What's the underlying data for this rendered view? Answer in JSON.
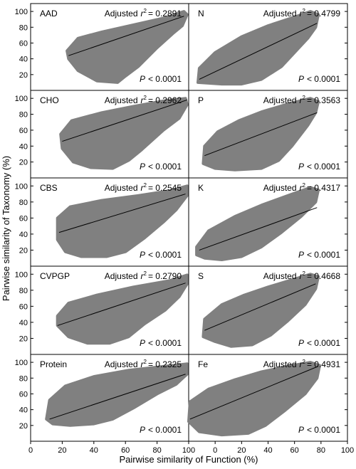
{
  "figure": {
    "ylabel": "Pairwise  similarity of Taxonomy (%)",
    "xlabel": "Pairwise similarity of Function (%)",
    "left_xticks": [
      "0",
      "20",
      "40",
      "60",
      "80",
      "100"
    ],
    "right_xticks": [
      "0",
      "20",
      "40",
      "60",
      "80",
      "100"
    ],
    "yticks": [
      "20",
      "40",
      "60",
      "80",
      "100"
    ],
    "scatter_color": "#808080",
    "line_color": "#000000"
  },
  "chart_data": [
    {
      "type": "scatter",
      "panel": "AAD",
      "r2_label": "Adjusted",
      "r2_symbol": "r",
      "r2_value": "= 0.2891",
      "p_label": "P",
      "p_value": "< 0.0001",
      "xlim": [
        0,
        100
      ],
      "ylim": [
        0,
        110
      ],
      "cloud": [
        [
          24,
          40
        ],
        [
          23,
          50
        ],
        [
          30,
          66
        ],
        [
          45,
          74
        ],
        [
          65,
          83
        ],
        [
          85,
          92
        ],
        [
          97,
          100
        ],
        [
          99,
          96
        ],
        [
          96,
          82
        ],
        [
          90,
          72
        ],
        [
          80,
          54
        ],
        [
          68,
          30
        ],
        [
          60,
          18
        ],
        [
          55,
          10
        ],
        [
          42,
          12
        ],
        [
          30,
          25
        ]
      ],
      "regression": [
        [
          24,
          44
        ],
        [
          97,
          94
        ]
      ]
    },
    {
      "type": "scatter",
      "panel": "N",
      "r2_label": "Adjusted",
      "r2_symbol": "r",
      "r2_value": "= 0.4799",
      "p_label": "P",
      "p_value": "< 0.0001",
      "xlim": [
        -20,
        100
      ],
      "ylim": [
        0,
        110
      ],
      "cloud": [
        [
          -13,
          10
        ],
        [
          -12,
          28
        ],
        [
          0,
          48
        ],
        [
          20,
          68
        ],
        [
          40,
          82
        ],
        [
          60,
          93
        ],
        [
          72,
          100
        ],
        [
          78,
          96
        ],
        [
          76,
          80
        ],
        [
          70,
          66
        ],
        [
          60,
          48
        ],
        [
          50,
          30
        ],
        [
          35,
          14
        ],
        [
          20,
          8
        ],
        [
          5,
          8
        ]
      ],
      "regression": [
        [
          -12,
          14
        ],
        [
          77,
          85
        ]
      ]
    },
    {
      "type": "scatter",
      "panel": "CHO",
      "r2_label": "Adjusted",
      "r2_symbol": "r",
      "r2_value": "= 0.2962",
      "p_label": "P",
      "p_value": "< 0.0001",
      "xlim": [
        0,
        100
      ],
      "ylim": [
        0,
        110
      ],
      "cloud": [
        [
          20,
          37
        ],
        [
          19,
          55
        ],
        [
          26,
          72
        ],
        [
          45,
          82
        ],
        [
          65,
          90
        ],
        [
          85,
          97
        ],
        [
          98,
          100
        ],
        [
          99,
          92
        ],
        [
          94,
          75
        ],
        [
          84,
          60
        ],
        [
          70,
          35
        ],
        [
          62,
          22
        ],
        [
          52,
          12
        ],
        [
          38,
          13
        ],
        [
          27,
          20
        ]
      ],
      "regression": [
        [
          20,
          46
        ],
        [
          99,
          98
        ]
      ]
    },
    {
      "type": "scatter",
      "panel": "P",
      "r2_label": "Adjusted",
      "r2_symbol": "r",
      "r2_value": "= 0.3563",
      "p_label": "P",
      "p_value": "< 0.0001",
      "xlim": [
        -20,
        100
      ],
      "ylim": [
        0,
        110
      ],
      "cloud": [
        [
          -9,
          18
        ],
        [
          -8,
          40
        ],
        [
          2,
          58
        ],
        [
          18,
          72
        ],
        [
          35,
          83
        ],
        [
          55,
          93
        ],
        [
          72,
          100
        ],
        [
          78,
          96
        ],
        [
          76,
          82
        ],
        [
          70,
          66
        ],
        [
          58,
          40
        ],
        [
          48,
          22
        ],
        [
          35,
          12
        ],
        [
          15,
          10
        ],
        [
          0,
          12
        ]
      ],
      "regression": [
        [
          -8,
          28
        ],
        [
          77,
          82
        ]
      ]
    },
    {
      "type": "scatter",
      "panel": "CBS",
      "r2_label": "Adjusted",
      "r2_symbol": "r",
      "r2_value": "= 0.2545",
      "p_label": "P",
      "p_value": "< 0.0001",
      "xlim": [
        0,
        100
      ],
      "ylim": [
        0,
        110
      ],
      "cloud": [
        [
          17,
          33
        ],
        [
          17,
          60
        ],
        [
          25,
          74
        ],
        [
          45,
          82
        ],
        [
          68,
          88
        ],
        [
          88,
          94
        ],
        [
          99,
          100
        ],
        [
          99,
          88
        ],
        [
          92,
          70
        ],
        [
          84,
          55
        ],
        [
          72,
          35
        ],
        [
          60,
          18
        ],
        [
          48,
          12
        ],
        [
          32,
          12
        ],
        [
          22,
          18
        ]
      ],
      "regression": [
        [
          18,
          42
        ],
        [
          98,
          90
        ]
      ]
    },
    {
      "type": "scatter",
      "panel": "K",
      "r2_label": "Adjusted",
      "r2_symbol": "r",
      "r2_value": "= 0.4317",
      "p_label": "P",
      "p_value": "< 0.0001",
      "xlim": [
        -20,
        100
      ],
      "ylim": [
        0,
        110
      ],
      "cloud": [
        [
          -14,
          14
        ],
        [
          -14,
          24
        ],
        [
          -5,
          44
        ],
        [
          15,
          62
        ],
        [
          35,
          76
        ],
        [
          55,
          88
        ],
        [
          72,
          98
        ],
        [
          78,
          95
        ],
        [
          76,
          80
        ],
        [
          65,
          62
        ],
        [
          50,
          42
        ],
        [
          35,
          24
        ],
        [
          20,
          12
        ],
        [
          5,
          8
        ],
        [
          -8,
          10
        ]
      ],
      "regression": [
        [
          -12,
          20
        ],
        [
          77,
          73
        ]
      ]
    },
    {
      "type": "scatter",
      "panel": "CVPGP",
      "r2_label": "Adjusted",
      "r2_symbol": "r",
      "r2_value": "= 0.2790",
      "p_label": "P",
      "p_value": "< 0.0001",
      "xlim": [
        0,
        100
      ],
      "ylim": [
        0,
        110
      ],
      "cloud": [
        [
          17,
          36
        ],
        [
          17,
          48
        ],
        [
          24,
          64
        ],
        [
          42,
          74
        ],
        [
          65,
          84
        ],
        [
          88,
          92
        ],
        [
          99,
          99
        ],
        [
          99,
          88
        ],
        [
          94,
          72
        ],
        [
          85,
          55
        ],
        [
          72,
          38
        ],
        [
          62,
          22
        ],
        [
          50,
          14
        ],
        [
          36,
          14
        ],
        [
          24,
          22
        ]
      ],
      "regression": [
        [
          17,
          36
        ],
        [
          98,
          89
        ]
      ]
    },
    {
      "type": "scatter",
      "panel": "S",
      "r2_label": "Adjusted",
      "r2_symbol": "r",
      "r2_value": "= 0.4668",
      "p_label": "P",
      "p_value": "< 0.0001",
      "xlim": [
        -20,
        100
      ],
      "ylim": [
        0,
        110
      ],
      "cloud": [
        [
          -9,
          22
        ],
        [
          -8,
          44
        ],
        [
          5,
          62
        ],
        [
          22,
          74
        ],
        [
          40,
          84
        ],
        [
          58,
          93
        ],
        [
          72,
          100
        ],
        [
          78,
          97
        ],
        [
          76,
          82
        ],
        [
          68,
          62
        ],
        [
          55,
          42
        ],
        [
          42,
          24
        ],
        [
          28,
          12
        ],
        [
          12,
          10
        ],
        [
          0,
          16
        ]
      ],
      "regression": [
        [
          -8,
          30
        ],
        [
          76,
          88
        ]
      ]
    },
    {
      "type": "scatter",
      "panel": "Protein",
      "r2_label": "Adjusted",
      "r2_symbol": "r",
      "r2_value": "= 0.2325",
      "p_label": "P",
      "p_value": "< 0.0001",
      "xlim": [
        0,
        100
      ],
      "ylim": [
        0,
        110
      ],
      "cloud": [
        [
          10,
          28
        ],
        [
          12,
          52
        ],
        [
          22,
          70
        ],
        [
          40,
          82
        ],
        [
          62,
          90
        ],
        [
          85,
          95
        ],
        [
          99,
          98
        ],
        [
          99,
          85
        ],
        [
          92,
          72
        ],
        [
          80,
          60
        ],
        [
          65,
          42
        ],
        [
          52,
          28
        ],
        [
          40,
          22
        ],
        [
          25,
          20
        ],
        [
          14,
          22
        ]
      ],
      "regression": [
        [
          12,
          28
        ],
        [
          98,
          85
        ]
      ]
    },
    {
      "type": "scatter",
      "panel": "Fe",
      "r2_label": "Adjusted",
      "r2_symbol": "r",
      "r2_value": "= 0.4931",
      "p_label": "P",
      "p_value": "< 0.0001",
      "xlim": [
        -20,
        100
      ],
      "ylim": [
        0,
        110
      ],
      "cloud": [
        [
          -20,
          25
        ],
        [
          -19,
          50
        ],
        [
          -5,
          66
        ],
        [
          15,
          78
        ],
        [
          35,
          88
        ],
        [
          55,
          95
        ],
        [
          72,
          100
        ],
        [
          79,
          96
        ],
        [
          77,
          80
        ],
        [
          68,
          60
        ],
        [
          52,
          38
        ],
        [
          38,
          20
        ],
        [
          25,
          10
        ],
        [
          5,
          8
        ],
        [
          -12,
          12
        ]
      ],
      "regression": [
        [
          -19,
          28
        ],
        [
          78,
          95
        ]
      ]
    }
  ]
}
